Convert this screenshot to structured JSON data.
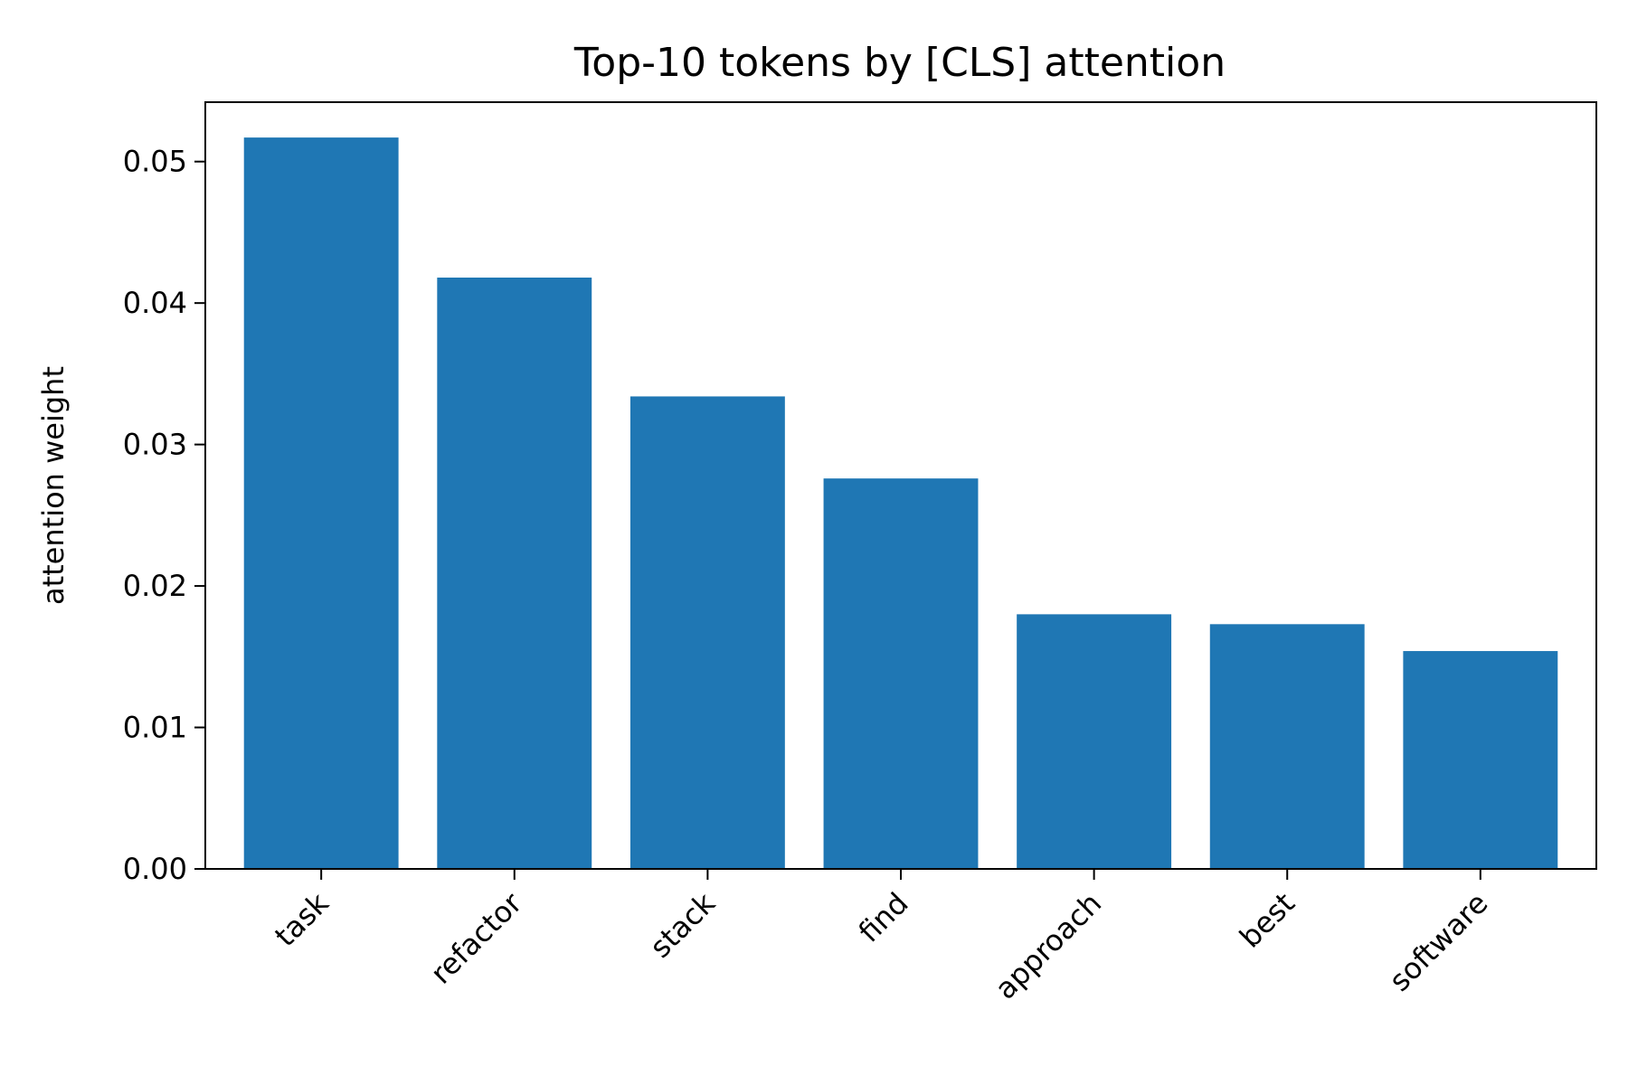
{
  "chart_data": {
    "type": "bar",
    "title": "Top-10 tokens by [CLS] attention",
    "xlabel": "",
    "ylabel": "attention weight",
    "categories": [
      "task",
      "refactor",
      "stack",
      "find",
      "approach",
      "best",
      "software"
    ],
    "values": [
      0.0517,
      0.0418,
      0.0334,
      0.0276,
      0.018,
      0.0173,
      0.0154
    ],
    "ylim": [
      0,
      0.0542
    ],
    "yticks": [
      0.0,
      0.01,
      0.02,
      0.03,
      0.04,
      0.05
    ],
    "ytick_labels": [
      "0.00",
      "0.01",
      "0.02",
      "0.03",
      "0.04",
      "0.05"
    ],
    "grid": false,
    "legend": "none",
    "bar_color": "#1f77b4"
  }
}
